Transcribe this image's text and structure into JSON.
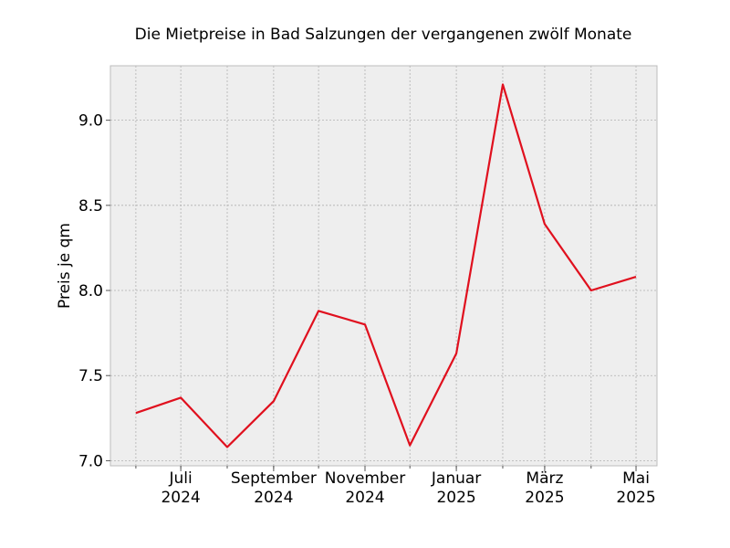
{
  "chart_data": {
    "type": "line",
    "title": "Die Mietpreise in Bad Salzungen der vergangenen zwölf Monate",
    "xlabel": "",
    "ylabel": "Preis je qm",
    "ylim": [
      6.97,
      9.32
    ],
    "yticks": [
      7.0,
      7.5,
      8.0,
      8.5,
      9.0
    ],
    "ytick_labels": [
      "7.0",
      "7.5",
      "8.0",
      "8.5",
      "9.0"
    ],
    "x": [
      "2024-06",
      "2024-07",
      "2024-08",
      "2024-09",
      "2024-10",
      "2024-11",
      "2024-12",
      "2025-01",
      "2025-02",
      "2025-03",
      "2025-04",
      "2025-05"
    ],
    "xlim": [
      "2024-05-15",
      "2025-05-15"
    ],
    "x_major_ticks": [
      {
        "x": "2024-07",
        "line1": "Juli",
        "line2": "2024"
      },
      {
        "x": "2024-09",
        "line1": "September",
        "line2": "2024"
      },
      {
        "x": "2024-11",
        "line1": "November",
        "line2": "2024"
      },
      {
        "x": "2025-01",
        "line1": "Januar",
        "line2": "2025"
      },
      {
        "x": "2025-03",
        "line1": "März",
        "line2": "2025"
      },
      {
        "x": "2025-05",
        "line1": "Mai",
        "line2": "2025"
      }
    ],
    "series": [
      {
        "values": [
          7.28,
          7.37,
          7.08,
          7.35,
          7.88,
          7.8,
          7.09,
          7.63,
          9.21,
          8.39,
          8.0,
          8.08
        ],
        "color": "#e0101e"
      }
    ],
    "grid": true,
    "background": "#eeeeee"
  }
}
